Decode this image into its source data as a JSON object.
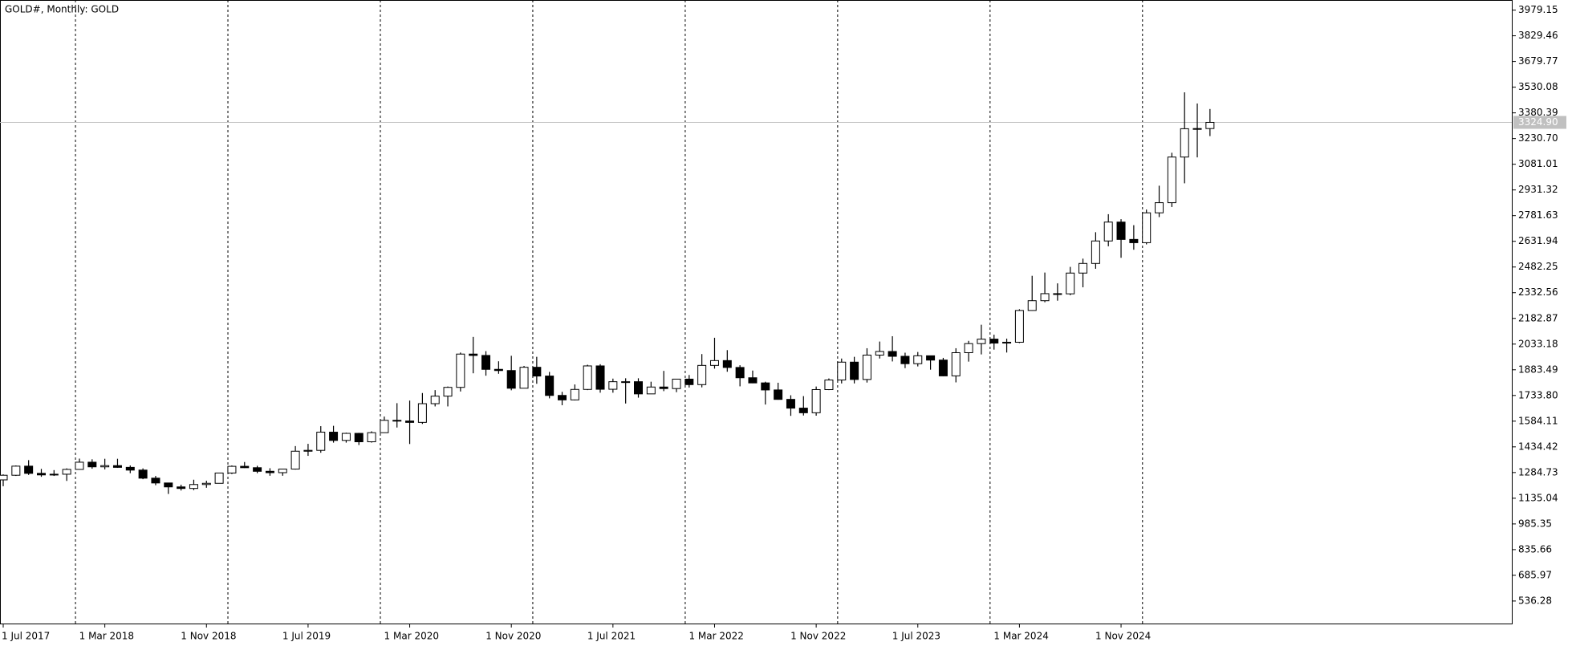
{
  "chart_data": {
    "type": "candlestick",
    "title": "GOLD#, Monthly:  GOLD",
    "up_color": "#ffffff",
    "down_color": "#000000",
    "categories": [
      "1 Jul 2017",
      null,
      null,
      null,
      null,
      null,
      null,
      null,
      "1 Mar 2018",
      null,
      null,
      null,
      null,
      null,
      null,
      null,
      "1 Nov 2018",
      null,
      null,
      null,
      null,
      null,
      null,
      null,
      "1 Jul 2019",
      null,
      null,
      null,
      null,
      null,
      null,
      null,
      "1 Mar 2020",
      null,
      null,
      null,
      null,
      null,
      null,
      null,
      "1 Nov 2020",
      null,
      null,
      null,
      null,
      null,
      null,
      null,
      "1 Jul 2021",
      null,
      null,
      null,
      null,
      null,
      null,
      null,
      "1 Mar 2022",
      null,
      null,
      null,
      null,
      null,
      null,
      null,
      "1 Nov 2022",
      null,
      null,
      null,
      null,
      null,
      null,
      null,
      "1 Jul 2023",
      null,
      null,
      null,
      null,
      null,
      null,
      null,
      "1 Mar 2024",
      null,
      null,
      null,
      null,
      null,
      null,
      null,
      "1 Nov 2024",
      null,
      null,
      null,
      null,
      null,
      null,
      null
    ],
    "open": [
      1242,
      1269,
      1322,
      1280,
      1271,
      1275,
      1303,
      1345,
      1318,
      1325,
      1315,
      1299,
      1252,
      1224,
      1201,
      1192,
      1215,
      1222,
      1282,
      1321,
      1313,
      1292,
      1284,
      1305,
      1409,
      1414,
      1520,
      1472,
      1513,
      1464,
      1517,
      1589,
      1585,
      1577,
      1686,
      1730,
      1781,
      1975,
      1967,
      1886,
      1879,
      1776,
      1898,
      1847,
      1734,
      1708,
      1769,
      1906,
      1770,
      1814,
      1814,
      1743,
      1783,
      1774,
      1829,
      1797,
      1909,
      1937,
      1897,
      1837,
      1807,
      1766,
      1711,
      1660,
      1633,
      1768,
      1824,
      1928,
      1827,
      1969,
      1990,
      1962,
      1919,
      1965,
      1940,
      1848,
      1983,
      2036,
      2062,
      2039,
      2044,
      2229,
      2286,
      2327,
      2326,
      2447,
      2503,
      2634,
      2744,
      2643,
      2624,
      2798,
      2857,
      3123,
      3288,
      3289
    ],
    "high": [
      1274,
      1326,
      1357,
      1306,
      1299,
      1309,
      1366,
      1362,
      1365,
      1365,
      1326,
      1309,
      1265,
      1225,
      1214,
      1243,
      1237,
      1284,
      1326,
      1346,
      1324,
      1310,
      1306,
      1439,
      1452,
      1555,
      1557,
      1517,
      1516,
      1525,
      1611,
      1689,
      1704,
      1748,
      1765,
      1786,
      1984,
      2075,
      1992,
      1933,
      1965,
      1906,
      1959,
      1871,
      1755,
      1798,
      1913,
      1916,
      1832,
      1834,
      1834,
      1814,
      1877,
      1831,
      1853,
      1975,
      2070,
      1998,
      1910,
      1879,
      1814,
      1808,
      1735,
      1730,
      1786,
      1833,
      1949,
      1959,
      2009,
      2048,
      2079,
      1983,
      1987,
      1966,
      1953,
      2009,
      2052,
      2146,
      2088,
      2065,
      2236,
      2431,
      2450,
      2387,
      2483,
      2531,
      2685,
      2790,
      2761,
      2726,
      2817,
      2956,
      3148,
      3500,
      3435,
      3403
    ],
    "low": [
      1205,
      1265,
      1271,
      1260,
      1265,
      1236,
      1302,
      1307,
      1303,
      1312,
      1281,
      1246,
      1211,
      1160,
      1180,
      1182,
      1196,
      1221,
      1276,
      1311,
      1281,
      1266,
      1266,
      1302,
      1382,
      1400,
      1459,
      1459,
      1445,
      1459,
      1517,
      1547,
      1451,
      1568,
      1670,
      1670,
      1757,
      1863,
      1849,
      1860,
      1764,
      1775,
      1802,
      1717,
      1677,
      1705,
      1765,
      1750,
      1750,
      1687,
      1721,
      1746,
      1759,
      1753,
      1780,
      1781,
      1890,
      1872,
      1787,
      1805,
      1681,
      1709,
      1615,
      1617,
      1616,
      1765,
      1804,
      1804,
      1809,
      1949,
      1932,
      1893,
      1903,
      1884,
      1846,
      1810,
      1931,
      1973,
      2001,
      1984,
      2039,
      2228,
      2277,
      2286,
      2318,
      2364,
      2472,
      2603,
      2536,
      2583,
      2614,
      2773,
      2832,
      2970,
      3121,
      3245
    ],
    "close": [
      1269,
      1322,
      1280,
      1271,
      1275,
      1303,
      1345,
      1318,
      1325,
      1315,
      1299,
      1252,
      1224,
      1201,
      1192,
      1215,
      1222,
      1282,
      1321,
      1313,
      1292,
      1284,
      1305,
      1409,
      1414,
      1520,
      1472,
      1513,
      1464,
      1517,
      1589,
      1585,
      1577,
      1686,
      1730,
      1781,
      1975,
      1967,
      1886,
      1879,
      1776,
      1898,
      1847,
      1734,
      1708,
      1769,
      1906,
      1770,
      1814,
      1814,
      1743,
      1783,
      1774,
      1829,
      1797,
      1909,
      1937,
      1897,
      1837,
      1807,
      1766,
      1711,
      1660,
      1633,
      1768,
      1824,
      1928,
      1827,
      1969,
      1990,
      1962,
      1919,
      1965,
      1940,
      1848,
      1983,
      2036,
      2062,
      2039,
      2044,
      2229,
      2286,
      2327,
      2326,
      2447,
      2503,
      2634,
      2744,
      2643,
      2624,
      2798,
      2857,
      3123,
      3288,
      3289,
      3325
    ],
    "ylim": [
      405,
      4038
    ],
    "yticks": [
      3979.15,
      3829.46,
      3679.77,
      3530.08,
      3380.39,
      {
        "value": 3230.7,
        "label": "3230.70"
      },
      3081.01,
      2931.32,
      2781.63,
      2631.94,
      2482.25,
      2332.56,
      2182.87,
      2033.18,
      1883.49,
      {
        "value": 1733.8,
        "label": "1733.80"
      },
      1584.11,
      1434.42,
      1284.73,
      1135.04,
      985.35,
      835.66,
      685.97,
      536.28
    ],
    "current_price": {
      "value": 3324.9,
      "label": "3324.90"
    }
  }
}
